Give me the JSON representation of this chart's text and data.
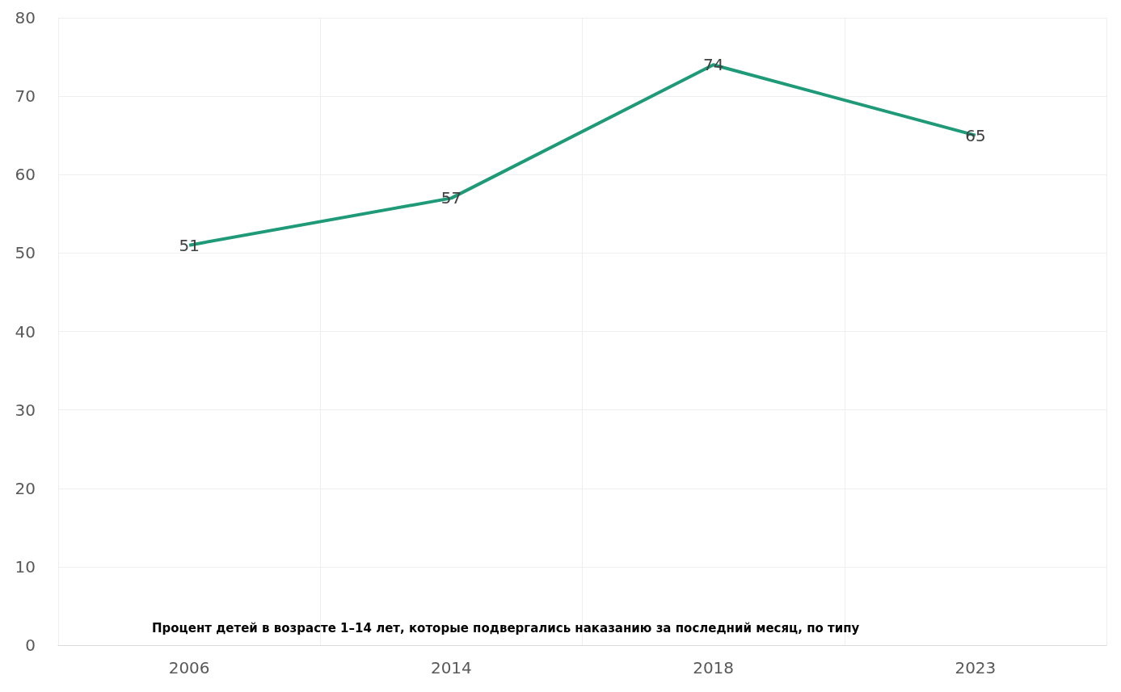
{
  "chart_data": {
    "type": "line",
    "title": "Процент детей в возрасте 1–14 лет, которые подвергались наказанию за последний месяц, по типу",
    "categories": [
      "2006",
      "2014",
      "2018",
      "2023"
    ],
    "values": [
      51,
      57,
      74,
      65
    ],
    "color": "#1e9a78",
    "ylim": [
      0,
      80
    ],
    "yticks": [
      0,
      10,
      20,
      30,
      40,
      50,
      60,
      70,
      80
    ],
    "grid": true,
    "data_labels": true,
    "marker": "none"
  }
}
